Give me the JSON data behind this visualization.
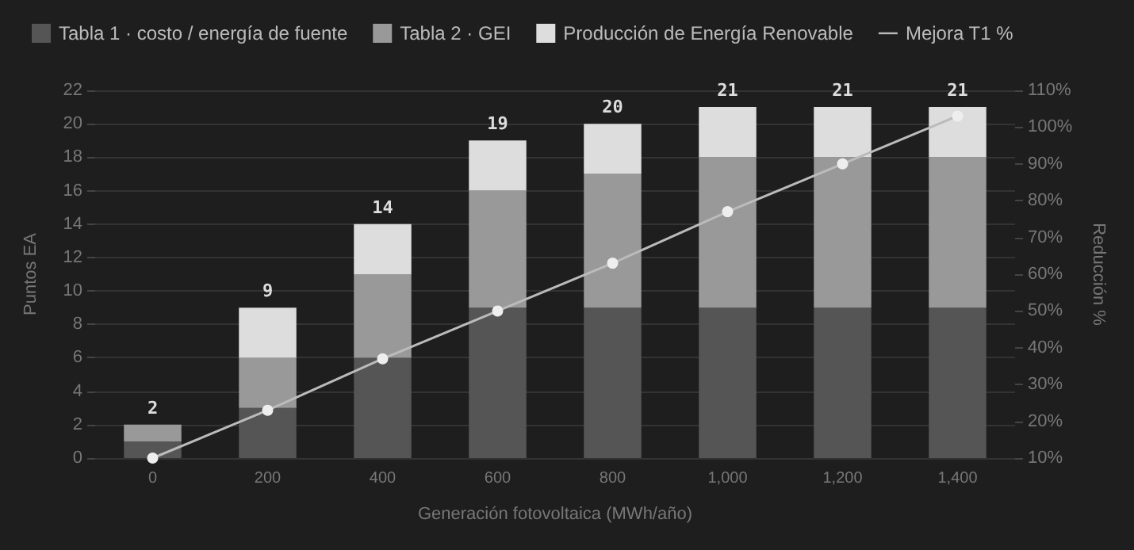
{
  "chart_data": {
    "type": "bar",
    "stacked": true,
    "xlabel": "Generación fotovoltaica (MWh/año)",
    "ylabel": "Puntos EA",
    "y2label": "Reducción %",
    "categories": [
      "0",
      "200",
      "400",
      "600",
      "800",
      "1,000",
      "1,200",
      "1,400"
    ],
    "series": [
      {
        "name": "Tabla 1 · costo / energía de fuente",
        "color": "#555555",
        "values": [
          1,
          3,
          6,
          9,
          9,
          9,
          9,
          9
        ]
      },
      {
        "name": "Tabla 2 · GEI",
        "color": "#999999",
        "values": [
          1,
          3,
          5,
          7,
          8,
          9,
          9,
          9
        ]
      },
      {
        "name": "Producción de Energía Renovable",
        "color": "#dddddd",
        "values": [
          0,
          3,
          3,
          3,
          3,
          3,
          3,
          3
        ]
      },
      {
        "name": "Mejora T1 %",
        "type": "line",
        "axis": "y2",
        "color": "#bbbbbb",
        "marker": "circle",
        "values": [
          10,
          23,
          37,
          50,
          63,
          77,
          90,
          103
        ]
      }
    ],
    "totals": [
      "2",
      "9",
      "14",
      "19",
      "20",
      "21",
      "21",
      "21"
    ],
    "ylim": [
      0,
      22
    ],
    "yticks": [
      0,
      2,
      4,
      6,
      8,
      10,
      12,
      14,
      16,
      18,
      20,
      22
    ],
    "y2lim": [
      10,
      110
    ],
    "y2ticks": [
      {
        "value": 10,
        "label": "10%"
      },
      {
        "value": 20,
        "label": "20%"
      },
      {
        "value": 30,
        "label": "30%"
      },
      {
        "value": 40,
        "label": "40%"
      },
      {
        "value": 50,
        "label": "50%"
      },
      {
        "value": 60,
        "label": "60%"
      },
      {
        "value": 70,
        "label": "70%"
      },
      {
        "value": 80,
        "label": "80%"
      },
      {
        "value": 90,
        "label": "90%"
      },
      {
        "value": 100,
        "label": "100%"
      },
      {
        "value": 110,
        "label": "110%"
      }
    ],
    "grid": "y",
    "legend": "top left"
  }
}
